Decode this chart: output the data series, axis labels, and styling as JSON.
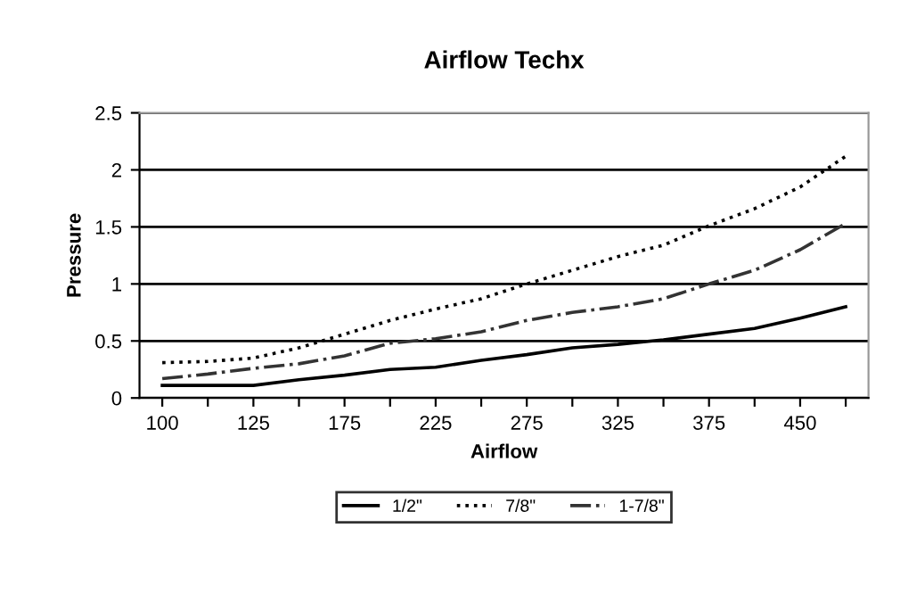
{
  "chart_data": {
    "type": "line",
    "title": "Airflow Techx",
    "xlabel": "Airflow",
    "ylabel": "Pressure",
    "categories": [
      "100",
      null,
      "125",
      null,
      "175",
      null,
      "225",
      null,
      "275",
      null,
      "325",
      null,
      "375",
      null,
      "450",
      null
    ],
    "series": [
      {
        "name": "1/2\"",
        "color": "#000000",
        "line_style": "solid",
        "values": [
          0.11,
          0.11,
          0.11,
          0.16,
          0.2,
          0.25,
          0.27,
          0.33,
          0.38,
          0.44,
          0.47,
          0.51,
          0.56,
          0.61,
          0.7,
          0.8
        ]
      },
      {
        "name": "7/8\"",
        "color": "#000000",
        "line_style": "dotted",
        "values": [
          0.31,
          0.32,
          0.35,
          0.44,
          0.56,
          0.68,
          0.78,
          0.87,
          1.0,
          1.12,
          1.24,
          1.34,
          1.51,
          1.66,
          1.85,
          2.12
        ]
      },
      {
        "name": "1-7/8\"",
        "color": "#333333",
        "line_style": "dashdot",
        "values": [
          0.17,
          0.21,
          0.26,
          0.3,
          0.37,
          0.48,
          0.52,
          0.58,
          0.68,
          0.75,
          0.8,
          0.87,
          1.0,
          1.12,
          1.3,
          1.53
        ]
      }
    ],
    "ylim": [
      0,
      2.5
    ],
    "yticks": [
      0,
      0.5,
      1,
      1.5,
      2,
      2.5
    ],
    "grid": "y",
    "legend": "bottom",
    "marker": "none"
  }
}
